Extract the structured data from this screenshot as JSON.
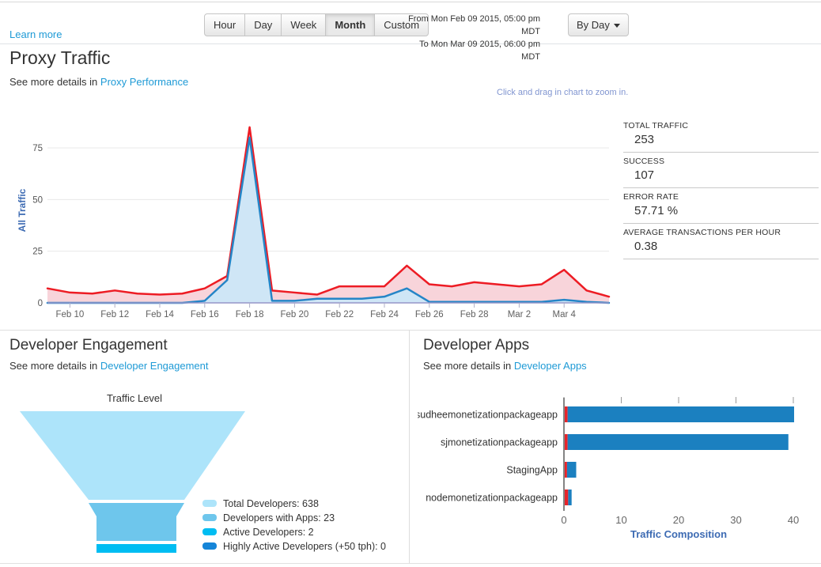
{
  "topbar": {
    "learn_more": "Learn more",
    "range_buttons": [
      "Hour",
      "Day",
      "Week",
      "Month",
      "Custom"
    ],
    "active_button": "Month",
    "from_label": "From Mon Feb 09 2015, 05:00 pm MDT",
    "to_label": "To Mon Mar 09 2015, 06:00 pm MDT",
    "group_by_label": "By Day"
  },
  "proxy_traffic": {
    "title": "Proxy Traffic",
    "subtitle_prefix": "See more details in",
    "subtitle_link": "Proxy Performance",
    "zoom_hint": "Click and drag in chart to zoom in.",
    "stats": [
      {
        "label": "TOTAL TRAFFIC",
        "value": "253"
      },
      {
        "label": "SUCCESS",
        "value": "107"
      },
      {
        "label": "ERROR RATE",
        "value": "57.71 %"
      },
      {
        "label": "AVERAGE TRANSACTIONS PER HOUR",
        "value": "0.38"
      }
    ]
  },
  "developer_engagement": {
    "title": "Developer Engagement",
    "subtitle_prefix": "See more details in",
    "subtitle_link": "Developer Engagement"
  },
  "developer_apps": {
    "title": "Developer Apps",
    "subtitle_prefix": "See more details in",
    "subtitle_link": "Developer Apps"
  },
  "chart_data": [
    {
      "id": "proxy_traffic_chart",
      "type": "area",
      "ylabel": "All Traffic",
      "x": [
        "Feb 9",
        "Feb 10",
        "Feb 11",
        "Feb 12",
        "Feb 13",
        "Feb 14",
        "Feb 15",
        "Feb 16",
        "Feb 17",
        "Feb 18",
        "Feb 19",
        "Feb 20",
        "Feb 21",
        "Feb 22",
        "Feb 23",
        "Feb 24",
        "Feb 25",
        "Feb 26",
        "Feb 27",
        "Feb 28",
        "Mar 1",
        "Mar 2",
        "Mar 3",
        "Mar 4",
        "Mar 5",
        "Mar 6"
      ],
      "x_tick_labels": [
        "Feb 10",
        "Feb 12",
        "Feb 14",
        "Feb 16",
        "Feb 18",
        "Feb 20",
        "Feb 22",
        "Feb 24",
        "Feb 26",
        "Feb 28",
        "Mar 2",
        "Mar 4"
      ],
      "y_ticks": [
        0,
        25,
        50,
        75
      ],
      "ylim": [
        0,
        88
      ],
      "grid": "horizontal",
      "series": [
        {
          "name": "red",
          "color": "#ed1c24",
          "fill": "#f8d4da",
          "values": [
            7,
            5,
            4.5,
            6,
            4.5,
            4,
            4.5,
            7,
            13,
            85,
            6,
            5,
            4,
            8,
            8,
            8,
            18,
            9,
            8,
            10,
            9,
            8,
            9,
            16,
            6,
            3
          ]
        },
        {
          "name": "blue",
          "color": "#2585c7",
          "fill": "#cfe6f6",
          "values": [
            0,
            0,
            0,
            0,
            0,
            0,
            0,
            1,
            11,
            80,
            1,
            1,
            2,
            2,
            2,
            3,
            7,
            0.5,
            0.5,
            0.5,
            0.5,
            0.5,
            0.5,
            1.5,
            0.5,
            0
          ]
        }
      ]
    },
    {
      "id": "developer_engagement_funnel",
      "type": "funnel",
      "title": "Traffic Level",
      "legend_position": "right",
      "segments": [
        {
          "label": "Total Developers",
          "value": 638,
          "color": "#ade4fa"
        },
        {
          "label": "Developers with Apps",
          "value": 23,
          "color": "#6ec6ec"
        },
        {
          "label": "Active Developers",
          "value": 2,
          "color": "#00bdf2"
        },
        {
          "label": "Highly Active Developers (+50 tph)",
          "value": 0,
          "color": "#1585d8"
        }
      ]
    },
    {
      "id": "developer_apps_chart",
      "type": "bar",
      "orientation": "horizontal",
      "categories": [
        "sudheemonetizationpackageapp",
        "sjmonetizationpackageapp",
        "StagingApp",
        "nodemonetizationpackageapp"
      ],
      "series": [
        {
          "name": "red",
          "color": "#e8242b",
          "values": [
            0.5,
            0.5,
            0.4,
            0.6
          ]
        },
        {
          "name": "blue",
          "color": "#1b80c0",
          "values": [
            39.5,
            38.5,
            1.6,
            0.6
          ]
        }
      ],
      "xlabel": "Traffic Composition",
      "x_ticks": [
        0,
        10,
        20,
        30,
        40
      ],
      "xlim": [
        0,
        40
      ]
    }
  ]
}
